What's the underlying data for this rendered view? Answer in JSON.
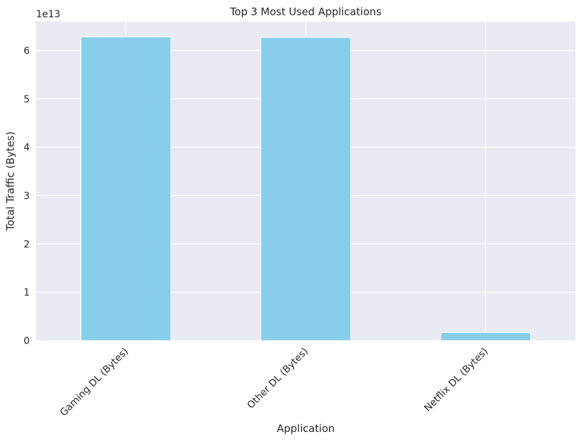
{
  "chart_data": {
    "type": "bar",
    "title": "Top 3 Most Used Applications",
    "xlabel": "Application",
    "ylabel": "Total Traffic (Bytes)",
    "offset_label": "1e13",
    "y_scale_factor": 10000000000000,
    "categories": [
      "Gaming DL (Bytes)",
      "Other DL (Bytes)",
      "Netflix DL (Bytes)"
    ],
    "values": [
      62800000000000,
      62700000000000,
      1650000000000
    ],
    "ylim": [
      0,
      6.6
    ],
    "yticks": [
      0,
      1,
      2,
      3,
      4,
      5,
      6
    ],
    "ytick_labels": [
      "0",
      "1",
      "2",
      "3",
      "4",
      "5",
      "6"
    ],
    "grid": true,
    "colors": {
      "bar": "#87CEEB",
      "background": "#EAEAF2",
      "grid": "#FFFFFF",
      "text": "#262626"
    }
  }
}
